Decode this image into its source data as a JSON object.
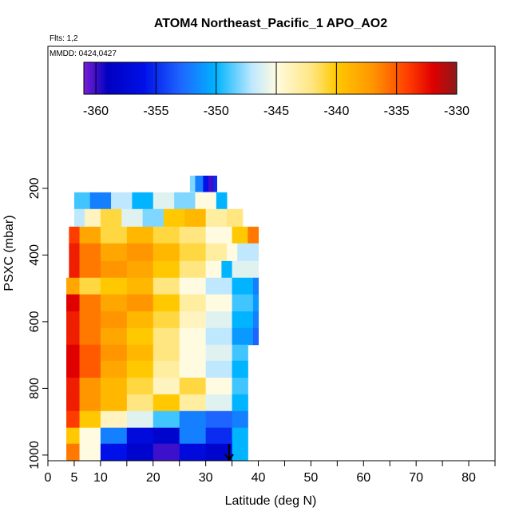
{
  "chart_data": {
    "type": "curtain",
    "title": "ATOM4 Northeast_Pacific_1 APO_AO2",
    "subtitle": "Flts: 1,2",
    "annotation": "MMDD: 0424,0427",
    "x_label": "Latitude (deg N)",
    "y_label": "PSXC (mbar)",
    "xlim": [
      0,
      85
    ],
    "xticks": [
      0,
      5,
      10,
      20,
      30,
      40,
      50,
      60,
      70,
      80
    ],
    "xminorticks": [
      15,
      25,
      35,
      45,
      55,
      65,
      75,
      85
    ],
    "ylim": [
      1017,
      -226
    ],
    "yticks": [
      200,
      400,
      600,
      800,
      1000
    ],
    "colorbar": {
      "lim": [
        -361,
        -330
      ],
      "ticks": [
        -360,
        -355,
        -350,
        -345,
        -340,
        -335,
        -330
      ],
      "colormap": [
        {
          "value": -361,
          "color": "#7a1fd6"
        },
        {
          "value": -359,
          "color": "#0000c0"
        },
        {
          "value": -356,
          "color": "#0010e8"
        },
        {
          "value": -353,
          "color": "#1e64ff"
        },
        {
          "value": -350,
          "color": "#00b4ff"
        },
        {
          "value": -347,
          "color": "#bfe8ff"
        },
        {
          "value": -345,
          "color": "#fffbe0"
        },
        {
          "value": -342,
          "color": "#ffe680"
        },
        {
          "value": -340,
          "color": "#ffc800"
        },
        {
          "value": -337,
          "color": "#ff9600"
        },
        {
          "value": -334,
          "color": "#ff3c00"
        },
        {
          "value": -332,
          "color": "#e00000"
        },
        {
          "value": -330,
          "color": "#8b1a1a"
        }
      ]
    },
    "rows": [
      {
        "p": [
          162,
          210
        ],
        "lat": [
          27,
          28,
          29.5,
          30.5,
          31.5,
          32.1
        ],
        "values": [
          -348,
          -352,
          -356,
          -360,
          -355
        ]
      },
      {
        "p": [
          212,
          262
        ],
        "lat": [
          5,
          8,
          12,
          16,
          20,
          24,
          28,
          32,
          34
        ],
        "values": [
          -349,
          -352,
          -347,
          -350,
          -346,
          -348,
          -345,
          -350
        ]
      },
      {
        "p": [
          262,
          315
        ],
        "lat": [
          5,
          7,
          10,
          14,
          18,
          22,
          26,
          30,
          34,
          37
        ],
        "values": [
          -347,
          -344,
          -341,
          -346,
          -348,
          -340,
          -339,
          -343,
          -342
        ]
      },
      {
        "p": [
          315,
          365
        ],
        "lat": [
          4,
          6,
          10,
          15,
          20,
          25,
          30,
          35,
          38,
          40
        ],
        "values": [
          -334,
          -338,
          -341,
          -339,
          -341,
          -342,
          -345,
          -340,
          -336
        ]
      },
      {
        "p": [
          365,
          418
        ],
        "lat": [
          4,
          6,
          10,
          15,
          20,
          25,
          30,
          34,
          36,
          40
        ],
        "values": [
          -333,
          -336,
          -338,
          -337,
          -339,
          -341,
          -343,
          -345,
          -347
        ]
      },
      {
        "p": [
          418,
          468
        ],
        "lat": [
          4,
          6,
          10,
          15,
          20,
          25,
          30,
          33,
          35,
          40
        ],
        "values": [
          -333,
          -336,
          -337,
          -338,
          -340,
          -342,
          -345,
          -350,
          -346
        ]
      },
      {
        "p": [
          468,
          518
        ],
        "lat": [
          3.5,
          6,
          10,
          15,
          20,
          25,
          30,
          35,
          39,
          40
        ],
        "values": [
          -338,
          -341,
          -340,
          -339,
          -342,
          -345,
          -347,
          -350,
          -352
        ]
      },
      {
        "p": [
          518,
          569
        ],
        "lat": [
          3.5,
          6,
          10,
          15,
          20,
          25,
          30,
          35,
          39,
          40
        ],
        "values": [
          -332,
          -336,
          -338,
          -337,
          -340,
          -343,
          -345,
          -349,
          -351
        ]
      },
      {
        "p": [
          569,
          619
        ],
        "lat": [
          3.5,
          6,
          10,
          15,
          20,
          25,
          30,
          35,
          39,
          40
        ],
        "values": [
          -333,
          -336,
          -337,
          -339,
          -341,
          -344,
          -346,
          -350,
          -352
        ]
      },
      {
        "p": [
          619,
          669
        ],
        "lat": [
          3.5,
          6,
          10,
          15,
          20,
          25,
          30,
          35,
          39,
          40
        ],
        "values": [
          -333,
          -336,
          -338,
          -340,
          -342,
          -345,
          -347,
          -351,
          -353
        ]
      },
      {
        "p": [
          669,
          717
        ],
        "lat": [
          3.5,
          6,
          10,
          15,
          20,
          25,
          30,
          35,
          38
        ],
        "values": [
          -332,
          -335,
          -337,
          -339,
          -342,
          -345,
          -346,
          -349
        ]
      },
      {
        "p": [
          717,
          768
        ],
        "lat": [
          3.5,
          6,
          10,
          15,
          20,
          25,
          30,
          35,
          38
        ],
        "values": [
          -332,
          -335,
          -338,
          -340,
          -343,
          -345,
          -347,
          -350
        ]
      },
      {
        "p": [
          768,
          818
        ],
        "lat": [
          3.5,
          6,
          10,
          15,
          20,
          25,
          30,
          35,
          38
        ],
        "values": [
          -333,
          -337,
          -339,
          -341,
          -344,
          -341,
          -345,
          -349
        ]
      },
      {
        "p": [
          818,
          868
        ],
        "lat": [
          3.5,
          6,
          10,
          15,
          20,
          25,
          30,
          35,
          38
        ],
        "values": [
          -333,
          -337,
          -339,
          -342,
          -340,
          -343,
          -346,
          -350
        ]
      },
      {
        "p": [
          868,
          918
        ],
        "lat": [
          3.5,
          6,
          10,
          15,
          20,
          25,
          30,
          35,
          38
        ],
        "values": [
          -334,
          -340,
          -344,
          -346,
          -349,
          -352,
          -353,
          -352
        ]
      },
      {
        "p": [
          918,
          966
        ],
        "lat": [
          3.5,
          6,
          10,
          15,
          20,
          25,
          30,
          35,
          38
        ],
        "values": [
          -340,
          -345,
          -352,
          -357,
          -358,
          -352,
          -355,
          -350
        ]
      },
      {
        "p": [
          966,
          1017
        ],
        "lat": [
          3.5,
          6,
          10,
          15,
          20,
          25,
          30,
          35,
          38
        ],
        "values": [
          -336,
          -345,
          -356,
          -358,
          -360,
          -357,
          -358,
          -350
        ]
      }
    ]
  }
}
